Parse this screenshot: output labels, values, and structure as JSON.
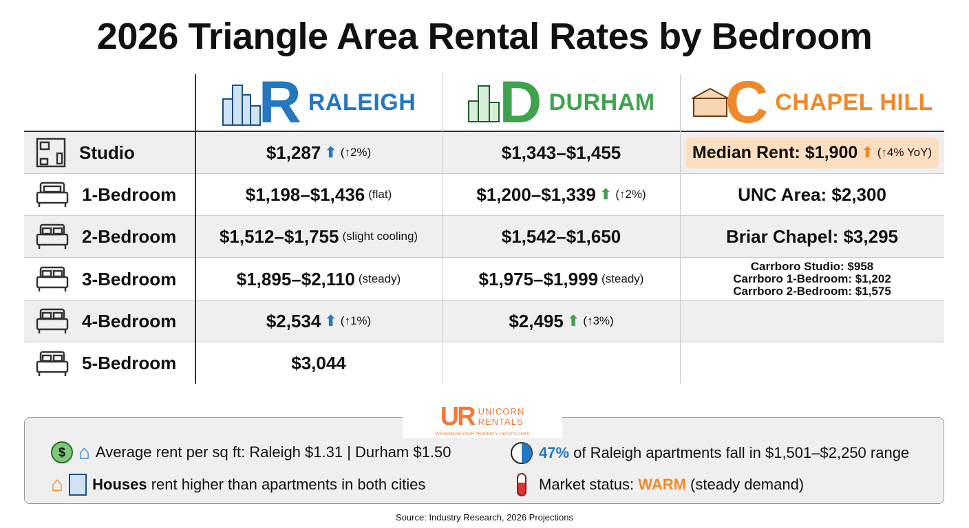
{
  "title": "2026 Triangle Area Rental Rates by Bedroom",
  "cities": [
    {
      "letter": "R",
      "name": "RALEIGH",
      "color": "#2477c0"
    },
    {
      "letter": "D",
      "name": "DURHAM",
      "color": "#3fa34d"
    },
    {
      "letter": "C",
      "name": "CHAPEL HILL",
      "color": "#ef8a2a"
    }
  ],
  "rows": [
    {
      "label": "Studio",
      "raleigh": {
        "value": "$1,287",
        "trend": "up",
        "note": "(↑2%)"
      },
      "durham": {
        "value": "$1,343–$1,455"
      },
      "chapel_hill": {
        "value": "Median Rent: $1,900",
        "trend": "up",
        "note": "(↑4% YoY)"
      }
    },
    {
      "label": "1-Bedroom",
      "raleigh": {
        "value": "$1,198–$1,436",
        "note": "(flat)"
      },
      "durham": {
        "value": "$1,200–$1,339",
        "trend": "up",
        "note": "(↑2%)"
      },
      "chapel_hill": {
        "value": "UNC Area: $2,300"
      }
    },
    {
      "label": "2-Bedroom",
      "raleigh": {
        "value": "$1,512–$1,755",
        "note": "(slight cooling)"
      },
      "durham": {
        "value": "$1,542–$1,650"
      },
      "chapel_hill": {
        "value": "Briar Chapel: $3,295"
      }
    },
    {
      "label": "3-Bedroom",
      "raleigh": {
        "value": "$1,895–$2,110",
        "note": "(steady)"
      },
      "durham": {
        "value": "$1,975–$1,999",
        "note": "(steady)"
      },
      "chapel_hill": {
        "lines": [
          "Carrboro Studio: $958",
          "Carrboro 1-Bedroom: $1,202",
          "Carrboro 2-Bedroom: $1,575"
        ]
      }
    },
    {
      "label": "4-Bedroom",
      "raleigh": {
        "value": "$2,534",
        "trend": "up",
        "note": "(↑1%)"
      },
      "durham": {
        "value": "$2,495",
        "trend": "up",
        "note": "(↑3%)"
      }
    },
    {
      "label": "5-Bedroom",
      "raleigh": {
        "value": "$3,044"
      }
    }
  ],
  "logo": {
    "mark": "UR",
    "name1": "UNICORN",
    "name2": "RENTALS",
    "tagline": "WE MANAGE YOUR PROPERTY LIKE IT'S OURS",
    "color": "#ef7a3a"
  },
  "footer": {
    "sqft": "Average rent per sq ft: Raleigh $1.31 | Durham $1.50",
    "houses_bold": "Houses",
    "houses_rest": " rent higher than apartments in both cities",
    "pct": "47%",
    "pct_rest": " of Raleigh apartments fall in $1,501–$2,250 range",
    "market_label": "Market status: ",
    "market_value": "WARM",
    "market_rest": " (steady demand)"
  },
  "source": "Source: Industry Research, 2026 Projections",
  "arrow_up": "⬆"
}
